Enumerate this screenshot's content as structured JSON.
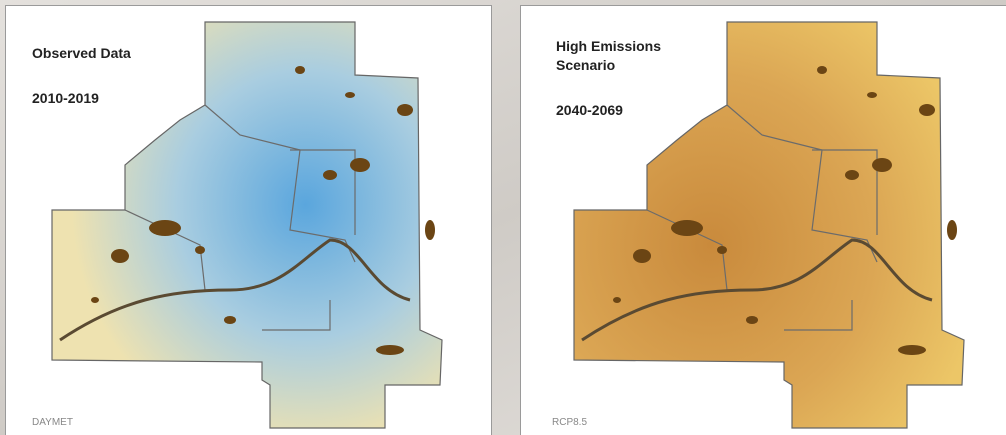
{
  "panels": [
    {
      "title_lines": [
        "Observed Data"
      ],
      "period": "2010-2019",
      "source": "DAYMET"
    },
    {
      "title_lines": [
        "High Emissions",
        "Scenario"
      ],
      "period": "2040-2069",
      "source": "RCP8.5"
    }
  ]
}
